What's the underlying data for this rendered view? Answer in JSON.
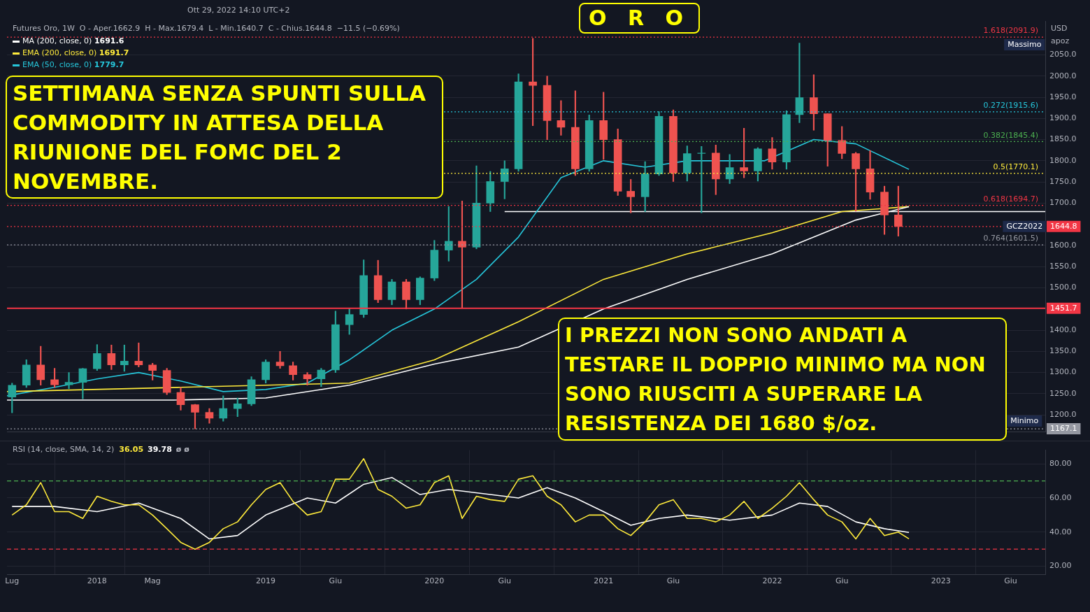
{
  "chart_data": [
    {
      "type": "candlestick",
      "title": "O R O",
      "subtitle": "Futures Oro, 1W  O - Aper.1662.9  H - Max.1679.4  L - Min.1640.7  C - Chius.1644.8  −11.5 (−0.69%)",
      "annotations": [
        "Ott 29, 2022 14:10 UTC+2",
        "SETTIMANA SENZA SPUNTI SULLA COMMODITY IN ATTESA DELLA RIUNIONE DEL FOMC DEL 2 NOVEMBRE.",
        "I PREZZI NON SONO ANDATI A TESTARE IL DOPPIO MINIMO MA NON SONO RIUSCITI A SUPERARE LA RESISTENZA DEI 1680 $/oz.",
        "USD",
        "apoz",
        {
          "text": "Massimo",
          "x": "2023-07",
          "y": 2091.9
        },
        {
          "text": "Minimo",
          "x": "2023-07",
          "y": 1167.1
        },
        {
          "text": "GCZ2022",
          "x": "2023-07",
          "y": 1644.8
        }
      ],
      "x": [
        "2017-07",
        "2017-08",
        "2017-09",
        "2017-10",
        "2017-11",
        "2017-12",
        "2018-01",
        "2018-02",
        "2018-03",
        "2018-04",
        "2018-05",
        "2018-06",
        "2018-07",
        "2018-08",
        "2018-09",
        "2018-10",
        "2018-11",
        "2018-12",
        "2019-01",
        "2019-02",
        "2019-03",
        "2019-04",
        "2019-05",
        "2019-06",
        "2019-07",
        "2019-08",
        "2019-09",
        "2019-10",
        "2019-11",
        "2019-12",
        "2020-01",
        "2020-02",
        "2020-03",
        "2020-04",
        "2020-05",
        "2020-06",
        "2020-07",
        "2020-08",
        "2020-09",
        "2020-10",
        "2020-11",
        "2020-12",
        "2021-01",
        "2021-02",
        "2021-03",
        "2021-04",
        "2021-05",
        "2021-06",
        "2021-07",
        "2021-08",
        "2021-09",
        "2021-10",
        "2021-11",
        "2021-12",
        "2022-01",
        "2022-02",
        "2022-03",
        "2022-04",
        "2022-05",
        "2022-06",
        "2022-07",
        "2022-08",
        "2022-09",
        "2022-10"
      ],
      "ohlc": [
        [
          1242,
          1275,
          1205,
          1270
        ],
        [
          1270,
          1330,
          1265,
          1318
        ],
        [
          1318,
          1362,
          1270,
          1283
        ],
        [
          1283,
          1310,
          1265,
          1271
        ],
        [
          1271,
          1300,
          1262,
          1277
        ],
        [
          1277,
          1310,
          1238,
          1309
        ],
        [
          1309,
          1366,
          1305,
          1345
        ],
        [
          1345,
          1365,
          1307,
          1318
        ],
        [
          1318,
          1365,
          1303,
          1327
        ],
        [
          1327,
          1370,
          1313,
          1318
        ],
        [
          1318,
          1322,
          1282,
          1305
        ],
        [
          1305,
          1310,
          1248,
          1253
        ],
        [
          1253,
          1265,
          1211,
          1224
        ],
        [
          1224,
          1225,
          1167,
          1206
        ],
        [
          1206,
          1215,
          1180,
          1192
        ],
        [
          1192,
          1245,
          1185,
          1215
        ],
        [
          1215,
          1240,
          1196,
          1226
        ],
        [
          1226,
          1290,
          1222,
          1283
        ],
        [
          1283,
          1330,
          1275,
          1325
        ],
        [
          1325,
          1350,
          1310,
          1316
        ],
        [
          1316,
          1325,
          1282,
          1295
        ],
        [
          1295,
          1300,
          1270,
          1285
        ],
        [
          1285,
          1310,
          1267,
          1306
        ],
        [
          1306,
          1445,
          1300,
          1413
        ],
        [
          1413,
          1452,
          1390,
          1437
        ],
        [
          1437,
          1566,
          1430,
          1529
        ],
        [
          1529,
          1565,
          1465,
          1472
        ],
        [
          1472,
          1520,
          1460,
          1514
        ],
        [
          1514,
          1520,
          1450,
          1472
        ],
        [
          1472,
          1526,
          1460,
          1523
        ],
        [
          1523,
          1612,
          1517,
          1589
        ],
        [
          1589,
          1692,
          1563,
          1610
        ],
        [
          1610,
          1705,
          1452,
          1596
        ],
        [
          1596,
          1788,
          1592,
          1700
        ],
        [
          1700,
          1775,
          1680,
          1751
        ],
        [
          1751,
          1800,
          1710,
          1781
        ],
        [
          1781,
          2005,
          1775,
          1986
        ],
        [
          1986,
          2089,
          1883,
          1978
        ],
        [
          1978,
          2000,
          1850,
          1895
        ],
        [
          1895,
          1942,
          1860,
          1879
        ],
        [
          1879,
          1965,
          1765,
          1781
        ],
        [
          1781,
          1908,
          1775,
          1895
        ],
        [
          1895,
          1962,
          1803,
          1850
        ],
        [
          1850,
          1875,
          1718,
          1728
        ],
        [
          1728,
          1756,
          1677,
          1715
        ],
        [
          1715,
          1798,
          1680,
          1769
        ],
        [
          1769,
          1916,
          1765,
          1905
        ],
        [
          1905,
          1920,
          1751,
          1771
        ],
        [
          1771,
          1835,
          1752,
          1817
        ],
        [
          1817,
          1834,
          1677,
          1818
        ],
        [
          1818,
          1837,
          1720,
          1757
        ],
        [
          1757,
          1815,
          1746,
          1784
        ],
        [
          1784,
          1877,
          1760,
          1776
        ],
        [
          1776,
          1831,
          1752,
          1828
        ],
        [
          1828,
          1855,
          1780,
          1797
        ],
        [
          1797,
          1918,
          1780,
          1909
        ],
        [
          1909,
          2078,
          1890,
          1949
        ],
        [
          1949,
          2003,
          1872,
          1911
        ],
        [
          1911,
          1911,
          1787,
          1848
        ],
        [
          1848,
          1881,
          1805,
          1817
        ],
        [
          1817,
          1820,
          1681,
          1781
        ],
        [
          1781,
          1824,
          1709,
          1726
        ],
        [
          1726,
          1740,
          1626,
          1672
        ],
        [
          1672,
          1740,
          1622,
          1644.8
        ]
      ],
      "series": [
        {
          "type": "line",
          "name": "MA (200, close, 0) 1691.6",
          "color": "#ffffff",
          "x": [
            "2017-06-20",
            "2018-06-16",
            "2019-01",
            "2019-07",
            "2020-01",
            "2020-07",
            "2021-01",
            "2021-07",
            "2022-01",
            "2022-07",
            "2022-10-24"
          ],
          "values": [
            1235,
            1235,
            1240,
            1270,
            1320,
            1360,
            1450,
            1520,
            1580,
            1660,
            1691.6
          ]
        },
        {
          "type": "line",
          "name": "EMA (200, close, 0) 1691.7",
          "color": "#ffeb3b",
          "x": [
            "2017-06-20",
            "2018-07",
            "2019-07",
            "2020-01",
            "2020-07",
            "2021-01",
            "2021-07",
            "2022-01",
            "2022-06",
            "2022-10-24"
          ],
          "values": [
            1255,
            1265,
            1275,
            1330,
            1420,
            1520,
            1580,
            1630,
            1680,
            1691.7
          ]
        },
        {
          "type": "line",
          "name": "EMA (50, close, 0) 1779.7",
          "color": "#26c6da",
          "x": [
            "2017-06-20",
            "2017-10",
            "2018-01",
            "2018-04",
            "2018-07",
            "2018-10",
            "2019-01",
            "2019-04",
            "2019-07",
            "2019-10",
            "2020-01",
            "2020-04",
            "2020-07",
            "2020-10",
            "2021-01",
            "2021-04",
            "2021-07",
            "2021-10",
            "2021-12-16",
            "2022-04",
            "2022-07",
            "2022-10-24"
          ],
          "values": [
            1245,
            1265,
            1285,
            1300,
            1280,
            1255,
            1260,
            1275,
            1330,
            1400,
            1450,
            1520,
            1620,
            1760,
            1800,
            1785,
            1800,
            1800,
            1800,
            1850,
            1840,
            1779.7
          ]
        },
        {
          "type": "line",
          "color": "#ffffff",
          "x": [
            "2020-06",
            "2023-08-15"
          ],
          "values": [
            1680,
            1680
          ]
        }
      ],
      "ref_lines": [
        {
          "axis": "y",
          "value": 2091.9,
          "label": "1.618(2091.9)",
          "color": "#f23645",
          "line_style": "dotted"
        },
        {
          "axis": "y",
          "value": 1915.6,
          "label": "0.272(1915.6)",
          "color": "#26c6da",
          "line_style": "dotted"
        },
        {
          "axis": "y",
          "value": 1845.4,
          "label": "0.382(1845.4)",
          "color": "#4caf50",
          "line_style": "dotted"
        },
        {
          "axis": "y",
          "value": 1770.1,
          "label": "0.5(1770.1)",
          "color": "#ffeb3b",
          "line_style": "dotted"
        },
        {
          "axis": "y",
          "value": 1694.7,
          "label": "0.618(1694.7)",
          "color": "#f23645",
          "line_style": "dotted"
        },
        {
          "axis": "y",
          "value": 1601.5,
          "label": "0.764(1601.5)",
          "color": "#9598a1",
          "line_style": "dotted"
        },
        {
          "axis": "y",
          "value": 1451.7,
          "label": "1451.7",
          "color": "#f23645",
          "line_style": "solid"
        },
        {
          "axis": "y",
          "value": 1644.8,
          "label": "1644.8",
          "color": "#f23645",
          "line_style": "dotted"
        },
        {
          "axis": "y",
          "value": 1167.1,
          "label": "1167.1",
          "color": "#9598a1",
          "line_style": "dotted"
        }
      ],
      "xlim": [
        "2017-06-20",
        "2023-08-15"
      ],
      "ylim": [
        1160,
        2130
      ],
      "yticks": [
        {
          "value": 1200,
          "label": "1200.0"
        },
        {
          "value": 1250,
          "label": "1250.0"
        },
        {
          "value": 1300,
          "label": "1300.0"
        },
        {
          "value": 1350,
          "label": "1350.0"
        },
        {
          "value": 1400,
          "label": "1400.0"
        },
        {
          "value": 1500,
          "label": "1500.0"
        },
        {
          "value": 1550,
          "label": "1550.0"
        },
        {
          "value": 1600,
          "label": "1600.0"
        },
        {
          "value": 1700,
          "label": "1700.0"
        },
        {
          "value": 1750,
          "label": "1750.0"
        },
        {
          "value": 1800,
          "label": "1800.0"
        },
        {
          "value": 1850,
          "label": "1850.0"
        },
        {
          "value": 1900,
          "label": "1900.0"
        },
        {
          "value": 1950,
          "label": "1950.0"
        },
        {
          "value": 2000,
          "label": "2000.0"
        },
        {
          "value": 2050,
          "label": "2050.0"
        }
      ],
      "tick_labels": "y",
      "grid": true,
      "legend": "top left",
      "marker": "none"
    },
    {
      "type": "line",
      "title": "RSI (14, close, SMA, 14, 2)",
      "annotations": [
        "36.05",
        "39.78",
        "ø ø"
      ],
      "series": [
        {
          "color": "#ffeb3b",
          "x": [
            "2017-07",
            "2017-08",
            "2017-09",
            "2017-10",
            "2017-11",
            "2017-12",
            "2018-01",
            "2018-02",
            "2018-03",
            "2018-04",
            "2018-05",
            "2018-06",
            "2018-07",
            "2018-08",
            "2018-09",
            "2018-10",
            "2018-11",
            "2018-12",
            "2019-01",
            "2019-02",
            "2019-03",
            "2019-04",
            "2019-05",
            "2019-06",
            "2019-07",
            "2019-08",
            "2019-09",
            "2019-10",
            "2019-11",
            "2019-12",
            "2020-01",
            "2020-02",
            "2020-03",
            "2020-04",
            "2020-05",
            "2020-06",
            "2020-07",
            "2020-08",
            "2020-09",
            "2020-10",
            "2020-11",
            "2020-12",
            "2021-01",
            "2021-02",
            "2021-03",
            "2021-04",
            "2021-05",
            "2021-06",
            "2021-07",
            "2021-08",
            "2021-09",
            "2021-10",
            "2021-11",
            "2021-12",
            "2022-01",
            "2022-02",
            "2022-03",
            "2022-04",
            "2022-05",
            "2022-06",
            "2022-07",
            "2022-08",
            "2022-09",
            "2022-10",
            "2022-10-24"
          ],
          "values": [
            50,
            56,
            69,
            52,
            52,
            48,
            61,
            58,
            56,
            56,
            50,
            42,
            34,
            30,
            34,
            42,
            46,
            56,
            65,
            69,
            58,
            50,
            52,
            71,
            71,
            83,
            65,
            61,
            54,
            56,
            69,
            73,
            48,
            61,
            59,
            58,
            71,
            73,
            61,
            56,
            46,
            50,
            50,
            42,
            38,
            46,
            56,
            59,
            48,
            48,
            46,
            50,
            58,
            48,
            54,
            61,
            69,
            59,
            50,
            46,
            36,
            48,
            38,
            40,
            36.05
          ]
        },
        {
          "color": "#ffffff",
          "x": [
            "2017-07",
            "2017-10",
            "2018-01",
            "2018-04",
            "2018-07",
            "2018-09",
            "2018-11",
            "2019-01",
            "2019-04",
            "2019-06",
            "2019-08",
            "2019-10",
            "2019-12",
            "2020-02",
            "2020-05",
            "2020-07",
            "2020-09",
            "2020-11",
            "2021-01",
            "2021-03",
            "2021-05",
            "2021-07",
            "2021-10",
            "2022-01",
            "2022-03",
            "2022-05",
            "2022-07",
            "2022-09",
            "2022-10-24"
          ],
          "values": [
            55,
            55,
            52,
            57,
            48,
            36,
            38,
            50,
            60,
            57,
            68,
            72,
            62,
            65,
            62,
            60,
            66,
            60,
            52,
            44,
            48,
            50,
            47,
            50,
            57,
            55,
            46,
            42,
            39.78
          ]
        }
      ],
      "ref_lines": [
        {
          "axis": "y",
          "value": 70,
          "color": "#4caf50",
          "line_style": "dashed"
        },
        {
          "axis": "y",
          "value": 30,
          "color": "#f23645",
          "line_style": "dashed"
        }
      ],
      "xlim": [
        "2017-06-20",
        "2023-08-15"
      ],
      "xticks": [
        {
          "value": "2017-07",
          "label": "Lug"
        },
        "2018",
        {
          "value": "2018-05",
          "label": "Mag"
        },
        "2019",
        {
          "value": "2019-06",
          "label": "Giu"
        },
        "2020",
        {
          "value": "2020-06",
          "label": "Giu"
        },
        "2021",
        {
          "value": "2021-06",
          "label": "Giu"
        },
        "2022",
        {
          "value": "2022-06",
          "label": "Giu"
        },
        "2023",
        {
          "value": "2023-06",
          "label": "Giu"
        }
      ],
      "ylim": [
        15,
        88
      ],
      "yticks": [
        {
          "value": 20,
          "label": "20.00"
        },
        {
          "value": 40,
          "label": "40.00"
        },
        {
          "value": 60,
          "label": "60.00"
        },
        {
          "value": 80,
          "label": "80.00"
        }
      ],
      "grid": true,
      "marker": "none",
      "line_style": "solid"
    }
  ]
}
